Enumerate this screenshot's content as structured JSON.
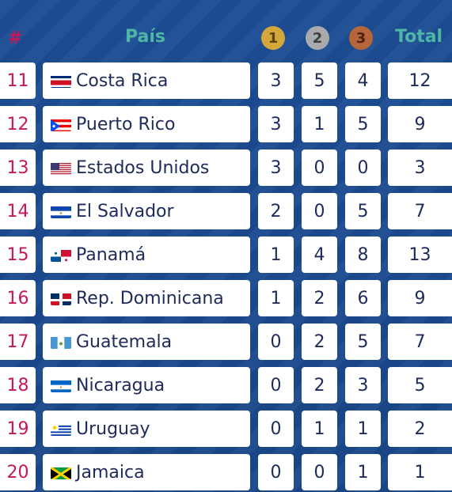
{
  "header": {
    "rank_label": "#",
    "country_label": "País",
    "gold_label": "1",
    "silver_label": "2",
    "bronze_label": "3",
    "total_label": "Total"
  },
  "rows": [
    {
      "rank": "11",
      "country": "Costa Rica",
      "flag": "costa-rica-flag-icon",
      "gold": "3",
      "silver": "5",
      "bronze": "4",
      "total": "12"
    },
    {
      "rank": "12",
      "country": "Puerto Rico",
      "flag": "puerto-rico-flag-icon",
      "gold": "3",
      "silver": "1",
      "bronze": "5",
      "total": "9"
    },
    {
      "rank": "13",
      "country": "Estados Unidos",
      "flag": "usa-flag-icon",
      "gold": "3",
      "silver": "0",
      "bronze": "0",
      "total": "3"
    },
    {
      "rank": "14",
      "country": "El Salvador",
      "flag": "el-salvador-flag-icon",
      "gold": "2",
      "silver": "0",
      "bronze": "5",
      "total": "7"
    },
    {
      "rank": "15",
      "country": "Panamá",
      "flag": "panama-flag-icon",
      "gold": "1",
      "silver": "4",
      "bronze": "8",
      "total": "13"
    },
    {
      "rank": "16",
      "country": "Rep. Dominicana",
      "flag": "dominican-republic-flag-icon",
      "gold": "1",
      "silver": "2",
      "bronze": "6",
      "total": "9"
    },
    {
      "rank": "17",
      "country": "Guatemala",
      "flag": "guatemala-flag-icon",
      "gold": "0",
      "silver": "2",
      "bronze": "5",
      "total": "7"
    },
    {
      "rank": "18",
      "country": "Nicaragua",
      "flag": "nicaragua-flag-icon",
      "gold": "0",
      "silver": "2",
      "bronze": "3",
      "total": "5"
    },
    {
      "rank": "19",
      "country": "Uruguay",
      "flag": "uruguay-flag-icon",
      "gold": "0",
      "silver": "1",
      "bronze": "1",
      "total": "2"
    },
    {
      "rank": "20",
      "country": "Jamaica",
      "flag": "jamaica-flag-icon",
      "gold": "0",
      "silver": "0",
      "bronze": "1",
      "total": "1"
    }
  ],
  "colors": {
    "background": "#1b4a8f",
    "rank": "#c2185b",
    "header_text": "#4fb6a6",
    "gold": "#d4a73a",
    "silver": "#a9aaac",
    "bronze": "#b7653a"
  }
}
